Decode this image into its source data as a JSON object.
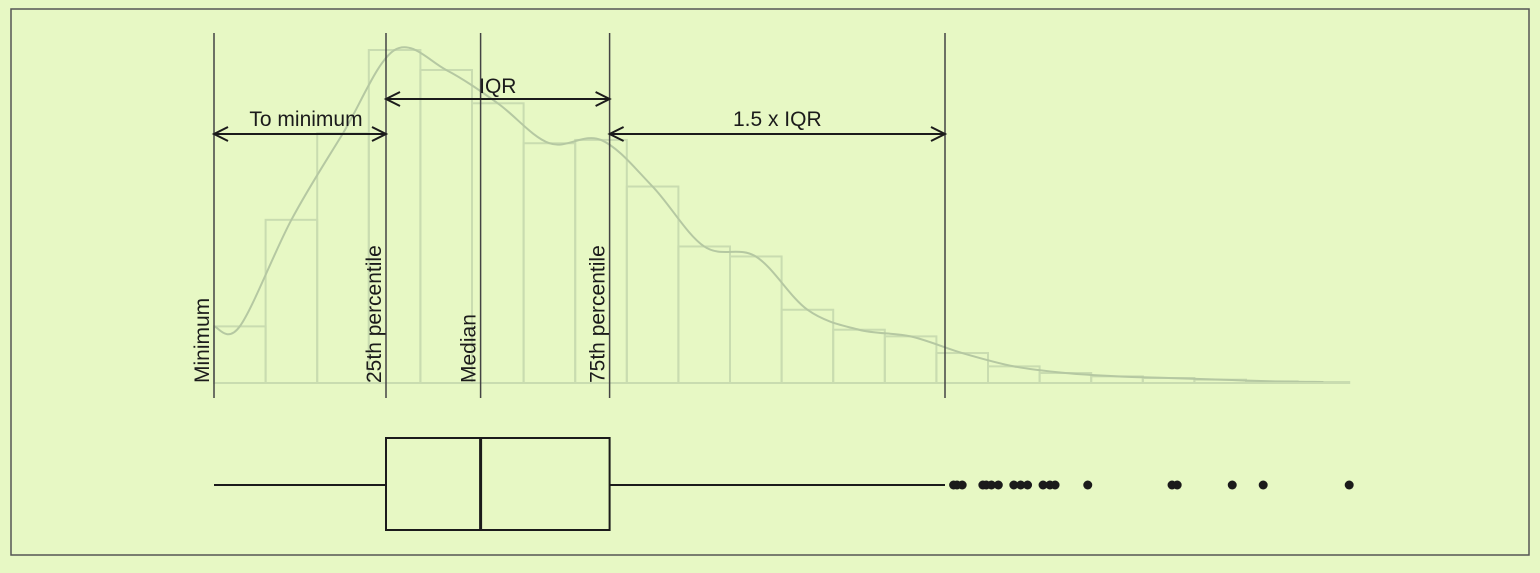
{
  "colors": {
    "background": "#e7f8c4",
    "ink": "#1b1b1b",
    "histogram": "#c9dcb0",
    "curve": "#b5c8a2"
  },
  "labels": {
    "minimum": "Minimum",
    "p25": "25th percentile",
    "median": "Median",
    "p75": "75th percentile",
    "to_minimum": "To minimum",
    "iqr": "IQR",
    "whisker_span": "1.5 x IQR"
  },
  "chart_data": {
    "type": "boxplot-with-histogram",
    "box": {
      "min": 0,
      "q1": 1.0,
      "median": 1.55,
      "q3": 2.3,
      "upper_fence": 4.25
    },
    "outliers": [
      4.3,
      4.32,
      4.35,
      4.47,
      4.49,
      4.52,
      4.56,
      4.65,
      4.69,
      4.73,
      4.82,
      4.86,
      4.89,
      5.08,
      5.57,
      5.6,
      5.92,
      6.1,
      6.6
    ],
    "histogram": {
      "bin_edges": [
        0,
        0.3,
        0.6,
        0.9,
        1.2,
        1.5,
        1.8,
        2.1,
        2.4,
        2.7,
        3.0,
        3.3,
        3.6,
        3.9,
        4.2,
        4.5,
        4.8,
        5.1,
        5.4,
        5.7,
        6.0,
        6.3,
        6.6
      ],
      "heights": [
        0.17,
        0.49,
        0.75,
        1.0,
        0.94,
        0.84,
        0.72,
        0.73,
        0.59,
        0.41,
        0.38,
        0.22,
        0.16,
        0.14,
        0.09,
        0.05,
        0.03,
        0.02,
        0.015,
        0.01,
        0.005,
        0.003
      ]
    },
    "x_range": [
      0,
      6.6
    ],
    "y_range": [
      0,
      1.0
    ]
  }
}
